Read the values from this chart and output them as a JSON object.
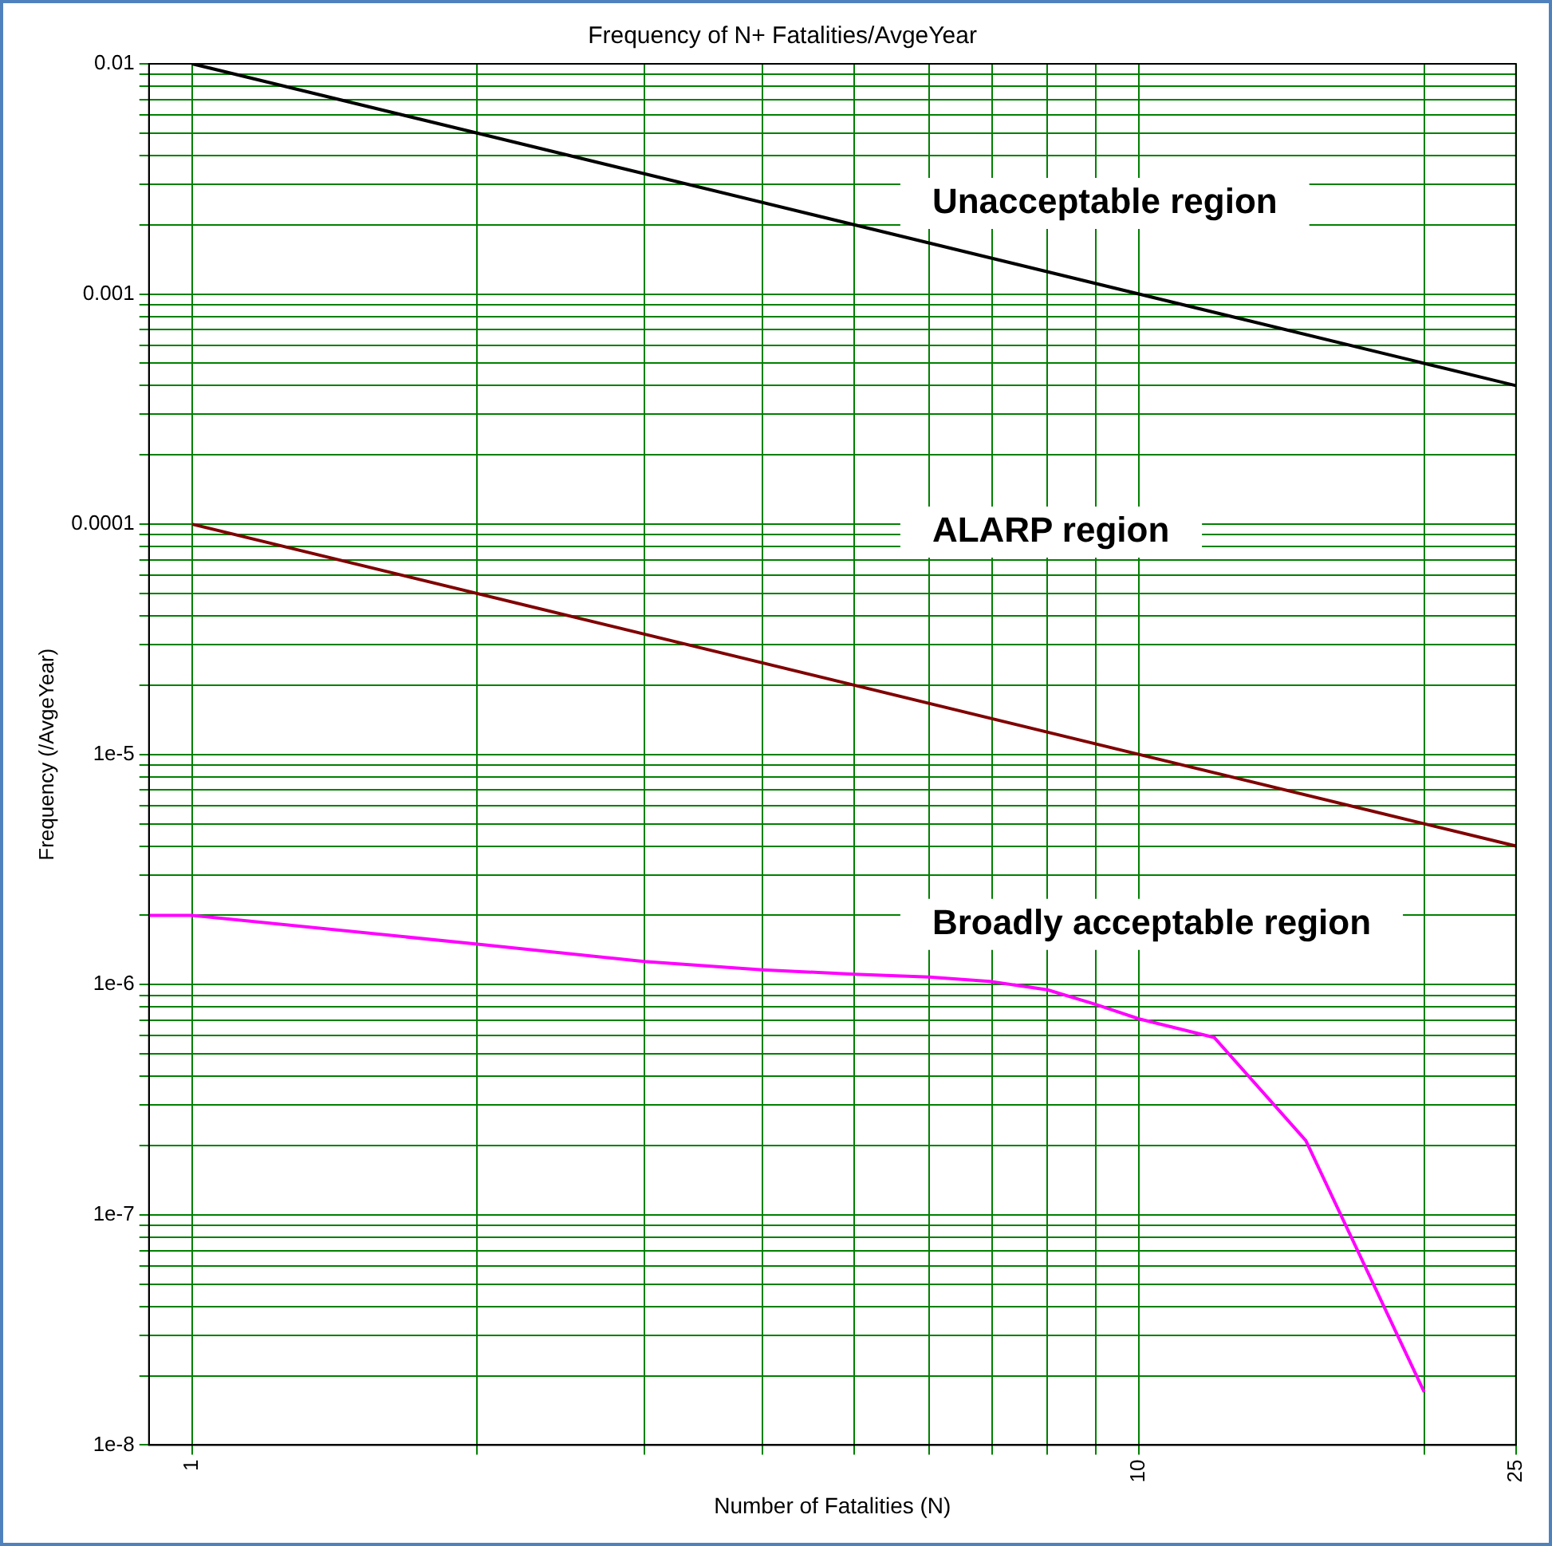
{
  "chart_data": {
    "type": "line",
    "title": "Frequency of N+ Fatalities/AvgeYear",
    "xlabel": "Number of Fatalities (N)",
    "ylabel": "Frequency (/AvgeYear)",
    "log": "xy",
    "grid": true,
    "legend": false,
    "marker": "none",
    "line_style": "solid",
    "xlim": [
      0.9,
      25
    ],
    "xticks": [
      1,
      {
        "value": 2,
        "label": null
      },
      {
        "value": 3,
        "label": null
      },
      {
        "value": 4,
        "label": null
      },
      {
        "value": 5,
        "label": null
      },
      {
        "value": 6,
        "label": null
      },
      {
        "value": 7,
        "label": null
      },
      {
        "value": 8,
        "label": null
      },
      {
        "value": 9,
        "label": null
      },
      10,
      {
        "value": 20,
        "label": null
      },
      25
    ],
    "ylim": [
      1e-08,
      0.01
    ],
    "yticks": [
      {
        "value": 1e-08,
        "label": "1e-8"
      },
      {
        "value": 2e-08,
        "label": null
      },
      {
        "value": 3e-08,
        "label": null
      },
      {
        "value": 4e-08,
        "label": null
      },
      {
        "value": 5e-08,
        "label": null
      },
      {
        "value": 6e-08,
        "label": null
      },
      {
        "value": 7e-08,
        "label": null
      },
      {
        "value": 8e-08,
        "label": null
      },
      {
        "value": 9e-08,
        "label": null
      },
      {
        "value": 1e-07,
        "label": "1e-7"
      },
      {
        "value": 2e-07,
        "label": null
      },
      {
        "value": 3e-07,
        "label": null
      },
      {
        "value": 4e-07,
        "label": null
      },
      {
        "value": 5e-07,
        "label": null
      },
      {
        "value": 6e-07,
        "label": null
      },
      {
        "value": 7e-07,
        "label": null
      },
      {
        "value": 8e-07,
        "label": null
      },
      {
        "value": 9e-07,
        "label": null
      },
      {
        "value": 1e-06,
        "label": "1e-6"
      },
      {
        "value": 2e-06,
        "label": null
      },
      {
        "value": 3e-06,
        "label": null
      },
      {
        "value": 4e-06,
        "label": null
      },
      {
        "value": 5e-06,
        "label": null
      },
      {
        "value": 6e-06,
        "label": null
      },
      {
        "value": 7e-06,
        "label": null
      },
      {
        "value": 8e-06,
        "label": null
      },
      {
        "value": 9e-06,
        "label": null
      },
      {
        "value": 1e-05,
        "label": "1e-5"
      },
      {
        "value": 2e-05,
        "label": null
      },
      {
        "value": 3e-05,
        "label": null
      },
      {
        "value": 4e-05,
        "label": null
      },
      {
        "value": 5e-05,
        "label": null
      },
      {
        "value": 6e-05,
        "label": null
      },
      {
        "value": 7e-05,
        "label": null
      },
      {
        "value": 8e-05,
        "label": null
      },
      {
        "value": 9e-05,
        "label": null
      },
      0.0001,
      {
        "value": 0.0002,
        "label": null
      },
      {
        "value": 0.0003,
        "label": null
      },
      {
        "value": 0.0004,
        "label": null
      },
      {
        "value": 0.0005,
        "label": null
      },
      {
        "value": 0.0006,
        "label": null
      },
      {
        "value": 0.0007,
        "label": null
      },
      {
        "value": 0.0008,
        "label": null
      },
      {
        "value": 0.0009,
        "label": null
      },
      0.001,
      {
        "value": 0.002,
        "label": null
      },
      {
        "value": 0.003,
        "label": null
      },
      {
        "value": 0.004,
        "label": null
      },
      {
        "value": 0.005,
        "label": null
      },
      {
        "value": 0.006,
        "label": null
      },
      {
        "value": 0.007,
        "label": null
      },
      {
        "value": 0.008,
        "label": null
      },
      {
        "value": 0.009,
        "label": null
      },
      0.01
    ],
    "series": [
      {
        "color": "#000000",
        "x": [
          1,
          25
        ],
        "values": [
          0.01,
          0.0004
        ]
      },
      {
        "color": "#800000",
        "x": [
          1,
          25
        ],
        "values": [
          0.0001,
          4e-06
        ]
      },
      {
        "color": "#ff00ff",
        "x": [
          0.9,
          1,
          2,
          3,
          4,
          5,
          6,
          7,
          8,
          9,
          10,
          12,
          15,
          20
        ],
        "values": [
          2e-06,
          2e-06,
          1.5e-06,
          1.26e-06,
          1.16e-06,
          1.11e-06,
          1.08e-06,
          1.03e-06,
          9.5e-07,
          8.2e-07,
          7.1e-07,
          5.9e-07,
          2.1e-07,
          1.7e-08
        ]
      }
    ],
    "annotations": [
      "Unacceptable region",
      "ALARP region",
      "Broadly acceptable region"
    ]
  }
}
